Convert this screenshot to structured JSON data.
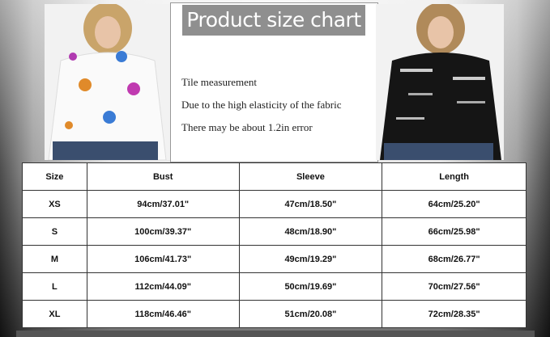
{
  "title": "Product size chart",
  "notes": [
    "Tile measurement",
    "Due to the high elasticity of the fabric",
    "There may be about 1.2in error"
  ],
  "images": {
    "left": "white-butterfly-print-shirt-photo",
    "right": "black-striped-print-shirt-photo"
  },
  "table": {
    "headers": [
      "Size",
      "Bust",
      "Sleeve",
      "Length"
    ],
    "rows": [
      [
        "XS",
        "94cm/37.01\"",
        "47cm/18.50\"",
        "64cm/25.20\""
      ],
      [
        "S",
        "100cm/39.37\"",
        "48cm/18.90\"",
        "66cm/25.98\""
      ],
      [
        "M",
        "106cm/41.73\"",
        "49cm/19.29\"",
        "68cm/26.77\""
      ],
      [
        "L",
        "112cm/44.09\"",
        "50cm/19.69\"",
        "70cm/27.56\""
      ],
      [
        "XL",
        "118cm/46.46\"",
        "51cm/20.08\"",
        "72cm/28.35\""
      ]
    ]
  }
}
